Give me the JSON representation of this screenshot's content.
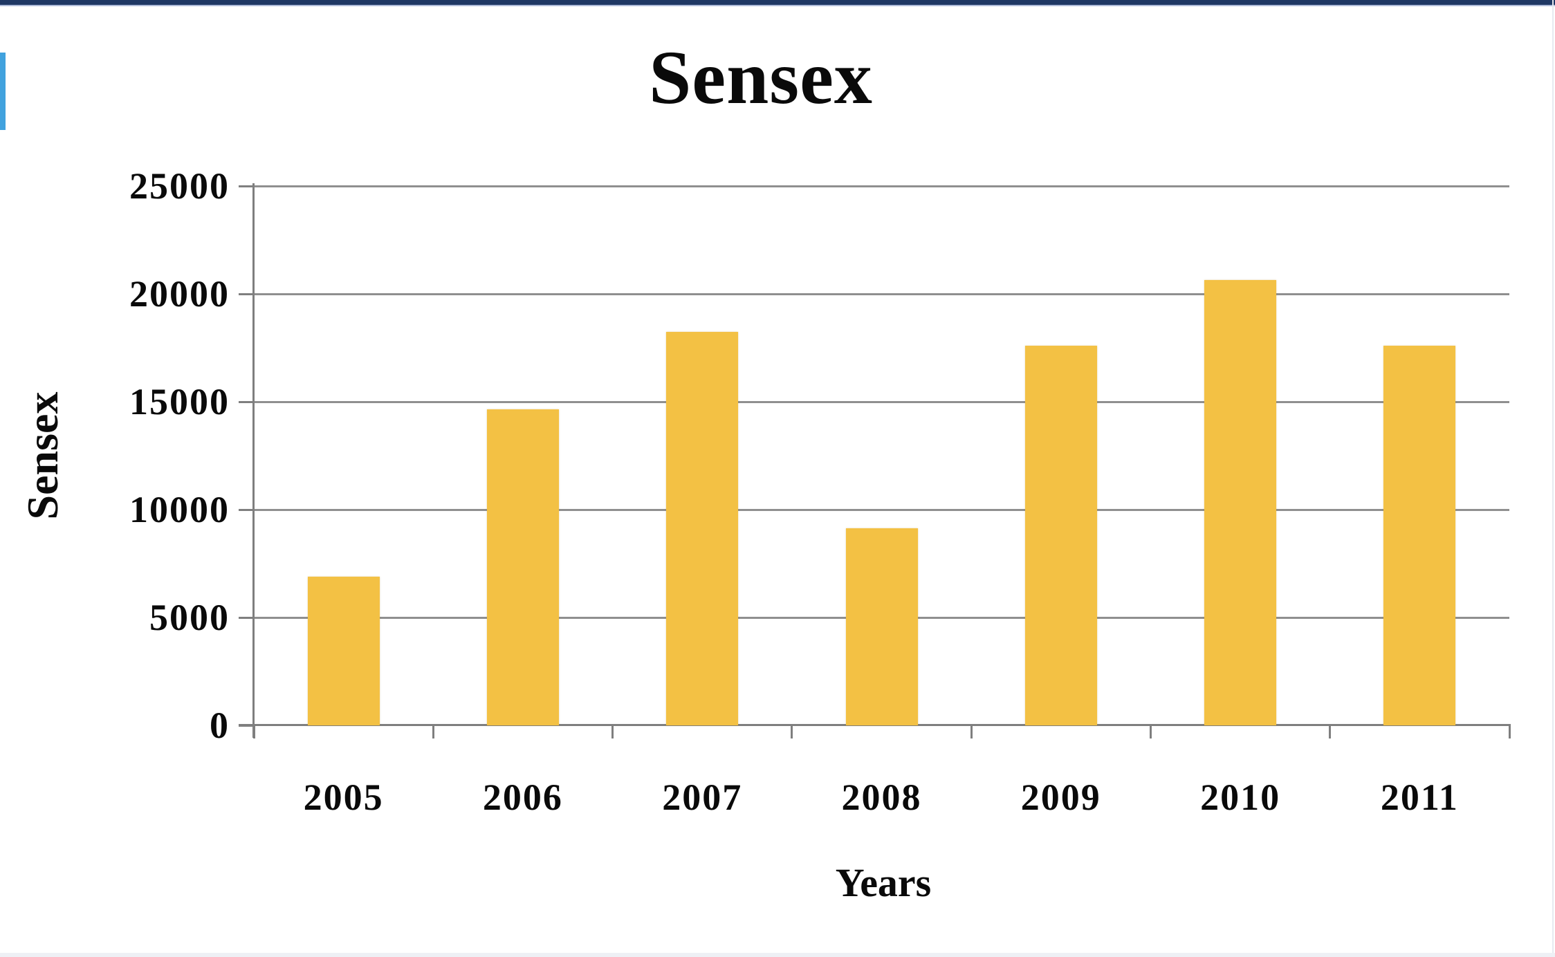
{
  "page": {
    "background": "#ffffff",
    "top_border_color": "#1F3864",
    "top_border_subline_color": "#AEBBD9",
    "left_accent_color": "#41A2DE",
    "right_edge_line_color": "#E7EAF0",
    "bottom_strip_color": "#EEF0F5"
  },
  "chart_data": {
    "type": "bar",
    "title": "Sensex",
    "xlabel": "Years",
    "ylabel": "Sensex",
    "categories": [
      "2005",
      "2006",
      "2007",
      "2008",
      "2009",
      "2010",
      "2011"
    ],
    "values": [
      6900,
      14650,
      18250,
      9150,
      17600,
      20650,
      17600
    ],
    "ylim": [
      0,
      25000
    ],
    "y_tick_interval": 5000,
    "y_tick_labels_top_to_bottom": [
      "25000",
      "20000",
      "15000",
      "10000",
      "5000",
      "0"
    ],
    "grid": true,
    "legend_position": "none",
    "bar_color": "#F3C144",
    "gridline_color": "#8F8F8F",
    "axis_color": "#7F7F7F",
    "text_color": "#0A0A0A"
  }
}
